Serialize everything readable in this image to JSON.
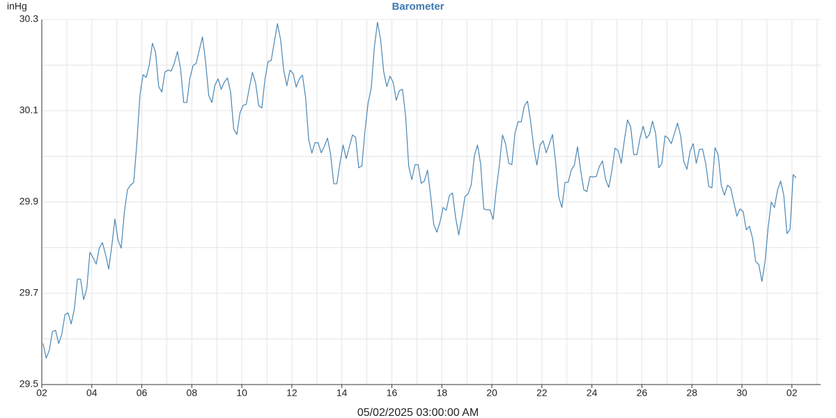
{
  "chart_data": {
    "type": "line",
    "title": "Barometer",
    "ylabel": "inHg",
    "xlabel": "05/02/2025 03:00:00 AM",
    "xlim": [
      0,
      31.15
    ],
    "xticks": [
      {
        "value": 0,
        "label": "02"
      },
      {
        "value": 2,
        "label": "04"
      },
      {
        "value": 4,
        "label": "06"
      },
      {
        "value": 6,
        "label": "08"
      },
      {
        "value": 8,
        "label": "10"
      },
      {
        "value": 10,
        "label": "12"
      },
      {
        "value": 12,
        "label": "14"
      },
      {
        "value": 14,
        "label": "16"
      },
      {
        "value": 16,
        "label": "18"
      },
      {
        "value": 18,
        "label": "20"
      },
      {
        "value": 20,
        "label": "22"
      },
      {
        "value": 22,
        "label": "24"
      },
      {
        "value": 24,
        "label": "26"
      },
      {
        "value": 26,
        "label": "28"
      },
      {
        "value": 28,
        "label": "30"
      },
      {
        "value": 30,
        "label": "02"
      }
    ],
    "minor_xticks": [
      1,
      3,
      5,
      7,
      9,
      11,
      13,
      15,
      17,
      19,
      21,
      23,
      25,
      27,
      29,
      31
    ],
    "ylim": [
      29.5,
      30.3
    ],
    "yticks": [
      29.5,
      29.7,
      29.9,
      30.1,
      30.3
    ],
    "minor_yticks": [
      29.6,
      29.8,
      30.0,
      30.2
    ],
    "grid": true,
    "series": [
      {
        "name": "Barometer",
        "color": "#4a86b4",
        "x": [
          0.05,
          0.175,
          0.3,
          0.425,
          0.55,
          0.675,
          0.8,
          0.925,
          1.05,
          1.175,
          1.3,
          1.425,
          1.55,
          1.675,
          1.8,
          1.925,
          2.05,
          2.175,
          2.3,
          2.425,
          2.55,
          2.675,
          2.8,
          2.925,
          3.05,
          3.175,
          3.3,
          3.425,
          3.55,
          3.675,
          3.8,
          3.925,
          4.05,
          4.175,
          4.3,
          4.425,
          4.55,
          4.675,
          4.8,
          4.925,
          5.05,
          5.175,
          5.3,
          5.425,
          5.55,
          5.675,
          5.8,
          5.925,
          6.05,
          6.175,
          6.3,
          6.425,
          6.55,
          6.675,
          6.8,
          6.925,
          7.05,
          7.175,
          7.3,
          7.425,
          7.55,
          7.675,
          7.8,
          7.925,
          8.05,
          8.175,
          8.3,
          8.425,
          8.55,
          8.675,
          8.8,
          8.925,
          9.05,
          9.175,
          9.3,
          9.425,
          9.55,
          9.675,
          9.8,
          9.925,
          10.05,
          10.175,
          10.3,
          10.425,
          10.55,
          10.675,
          10.8,
          10.925,
          11.05,
          11.175,
          11.3,
          11.425,
          11.55,
          11.675,
          11.8,
          11.925,
          12.05,
          12.175,
          12.3,
          12.425,
          12.55,
          12.675,
          12.8,
          12.925,
          13.05,
          13.175,
          13.3,
          13.425,
          13.55,
          13.675,
          13.8,
          13.925,
          14.05,
          14.175,
          14.3,
          14.425,
          14.55,
          14.675,
          14.8,
          14.925,
          15.05,
          15.175,
          15.3,
          15.425,
          15.55,
          15.675,
          15.8,
          15.925,
          16.05,
          16.175,
          16.3,
          16.425,
          16.55,
          16.675,
          16.8,
          16.925,
          17.05,
          17.175,
          17.3,
          17.425,
          17.55,
          17.675,
          17.8,
          17.925,
          18.05,
          18.175,
          18.3,
          18.425,
          18.55,
          18.675,
          18.8,
          18.925,
          19.05,
          19.175,
          19.3,
          19.425,
          19.55,
          19.675,
          19.8,
          19.925,
          20.05,
          20.175,
          20.3,
          20.425,
          20.55,
          20.675,
          20.8,
          20.925,
          21.05,
          21.175,
          21.3,
          21.425,
          21.55,
          21.675,
          21.8,
          21.925,
          22.05,
          22.175,
          22.3,
          22.425,
          22.55,
          22.675,
          22.8,
          22.925,
          23.05,
          23.175,
          23.3,
          23.425,
          23.55,
          23.675,
          23.8,
          23.925,
          24.05,
          24.175,
          24.3,
          24.425,
          24.55,
          24.675,
          24.8,
          24.925,
          25.05,
          25.175,
          25.3,
          25.425,
          25.55,
          25.675,
          25.8,
          25.925,
          26.05,
          26.175,
          26.3,
          26.425,
          26.55,
          26.675,
          26.8,
          26.925,
          27.05,
          27.175,
          27.3,
          27.425,
          27.55,
          27.675,
          27.8,
          27.925,
          28.05,
          28.175,
          28.3,
          28.425,
          28.55,
          28.675,
          28.8,
          28.925,
          29.05,
          29.175,
          29.3,
          29.425,
          29.55,
          29.675,
          29.8,
          29.925,
          30.05,
          30.175
        ],
        "values": [
          29.59,
          29.558,
          29.575,
          29.616,
          29.619,
          29.59,
          29.61,
          29.653,
          29.657,
          29.633,
          29.665,
          29.731,
          29.731,
          29.686,
          29.711,
          29.79,
          29.778,
          29.764,
          29.799,
          29.811,
          29.785,
          29.753,
          29.804,
          29.863,
          29.816,
          29.799,
          29.877,
          29.927,
          29.937,
          29.943,
          30.028,
          30.134,
          30.179,
          30.173,
          30.201,
          30.248,
          30.228,
          30.153,
          30.141,
          30.185,
          30.189,
          30.187,
          30.204,
          30.23,
          30.192,
          30.118,
          30.118,
          30.172,
          30.199,
          30.204,
          30.233,
          30.262,
          30.208,
          30.134,
          30.118,
          30.156,
          30.17,
          30.147,
          30.163,
          30.172,
          30.141,
          30.06,
          30.048,
          30.095,
          30.112,
          30.114,
          30.15,
          30.184,
          30.161,
          30.111,
          30.106,
          30.169,
          30.208,
          30.21,
          30.251,
          30.291,
          30.256,
          30.189,
          30.155,
          30.189,
          30.182,
          30.152,
          30.17,
          30.178,
          30.129,
          30.037,
          30.007,
          30.03,
          30.03,
          30.008,
          30.022,
          30.04,
          30.005,
          29.94,
          29.94,
          29.985,
          30.025,
          29.995,
          30.021,
          30.047,
          30.042,
          29.975,
          29.979,
          30.056,
          30.117,
          30.149,
          30.239,
          30.294,
          30.256,
          30.185,
          30.153,
          30.176,
          30.163,
          30.123,
          30.144,
          30.147,
          30.089,
          29.978,
          29.949,
          29.982,
          29.982,
          29.941,
          29.946,
          29.97,
          29.915,
          29.851,
          29.834,
          29.856,
          29.888,
          29.882,
          29.914,
          29.92,
          29.866,
          29.828,
          29.866,
          29.912,
          29.918,
          29.938,
          30.001,
          30.025,
          29.984,
          29.885,
          29.883,
          29.883,
          29.862,
          29.927,
          29.981,
          30.047,
          30.027,
          29.985,
          29.982,
          30.051,
          30.076,
          30.076,
          30.111,
          30.121,
          30.077,
          30.019,
          29.981,
          30.025,
          30.034,
          30.008,
          30.028,
          30.048,
          29.987,
          29.911,
          29.888,
          29.943,
          29.943,
          29.97,
          29.981,
          30.021,
          29.97,
          29.927,
          29.923,
          29.956,
          29.955,
          29.956,
          29.978,
          29.99,
          29.949,
          29.932,
          29.969,
          30.018,
          30.013,
          29.985,
          30.036,
          30.08,
          30.065,
          30.004,
          30.004,
          30.04,
          30.066,
          30.04,
          30.048,
          30.077,
          30.05,
          29.975,
          29.985,
          30.045,
          30.04,
          30.028,
          30.05,
          30.073,
          30.045,
          29.989,
          29.972,
          30.011,
          30.028,
          29.985,
          30.015,
          30.016,
          29.985,
          29.934,
          29.931,
          30.019,
          30.004,
          29.937,
          29.915,
          29.937,
          29.931,
          29.9,
          29.869,
          29.885,
          29.879,
          29.839,
          29.847,
          29.821,
          29.77,
          29.763,
          29.726,
          29.769,
          29.845,
          29.9,
          29.888,
          29.926,
          29.946,
          29.915,
          29.831,
          29.84,
          29.96,
          29.953
        ]
      }
    ]
  }
}
